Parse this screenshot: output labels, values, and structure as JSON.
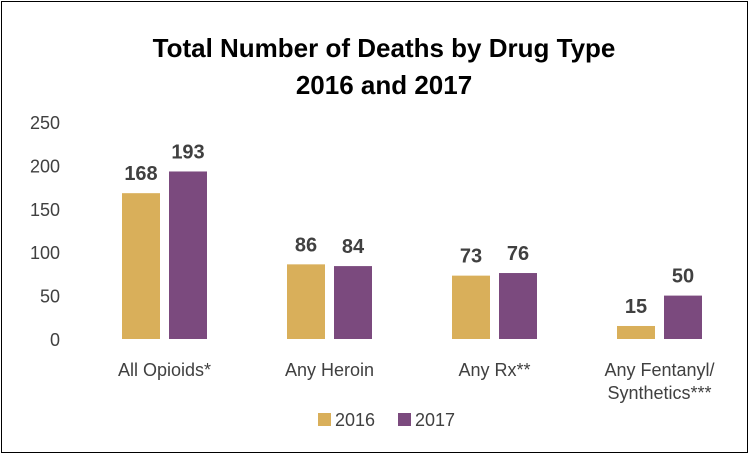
{
  "chart_data": {
    "type": "bar",
    "title": [
      "Total Number of Deaths by Drug Type",
      "2016 and 2017"
    ],
    "categories": [
      [
        "All Opioids*"
      ],
      [
        "Any Heroin"
      ],
      [
        "Any Rx**"
      ],
      [
        "Any Fentanyl/",
        "Synthetics***"
      ]
    ],
    "series": [
      {
        "name": "2016",
        "values": [
          168,
          86,
          73,
          15
        ],
        "color": "#D9AF5A"
      },
      {
        "name": "2017",
        "values": [
          193,
          84,
          76,
          50
        ],
        "color": "#7B4A7E"
      }
    ],
    "ylim": [
      0,
      250
    ],
    "yticks": [
      0,
      50,
      100,
      150,
      200,
      250
    ],
    "grid": false,
    "legend": "bottom",
    "xlabel": "",
    "ylabel": ""
  }
}
